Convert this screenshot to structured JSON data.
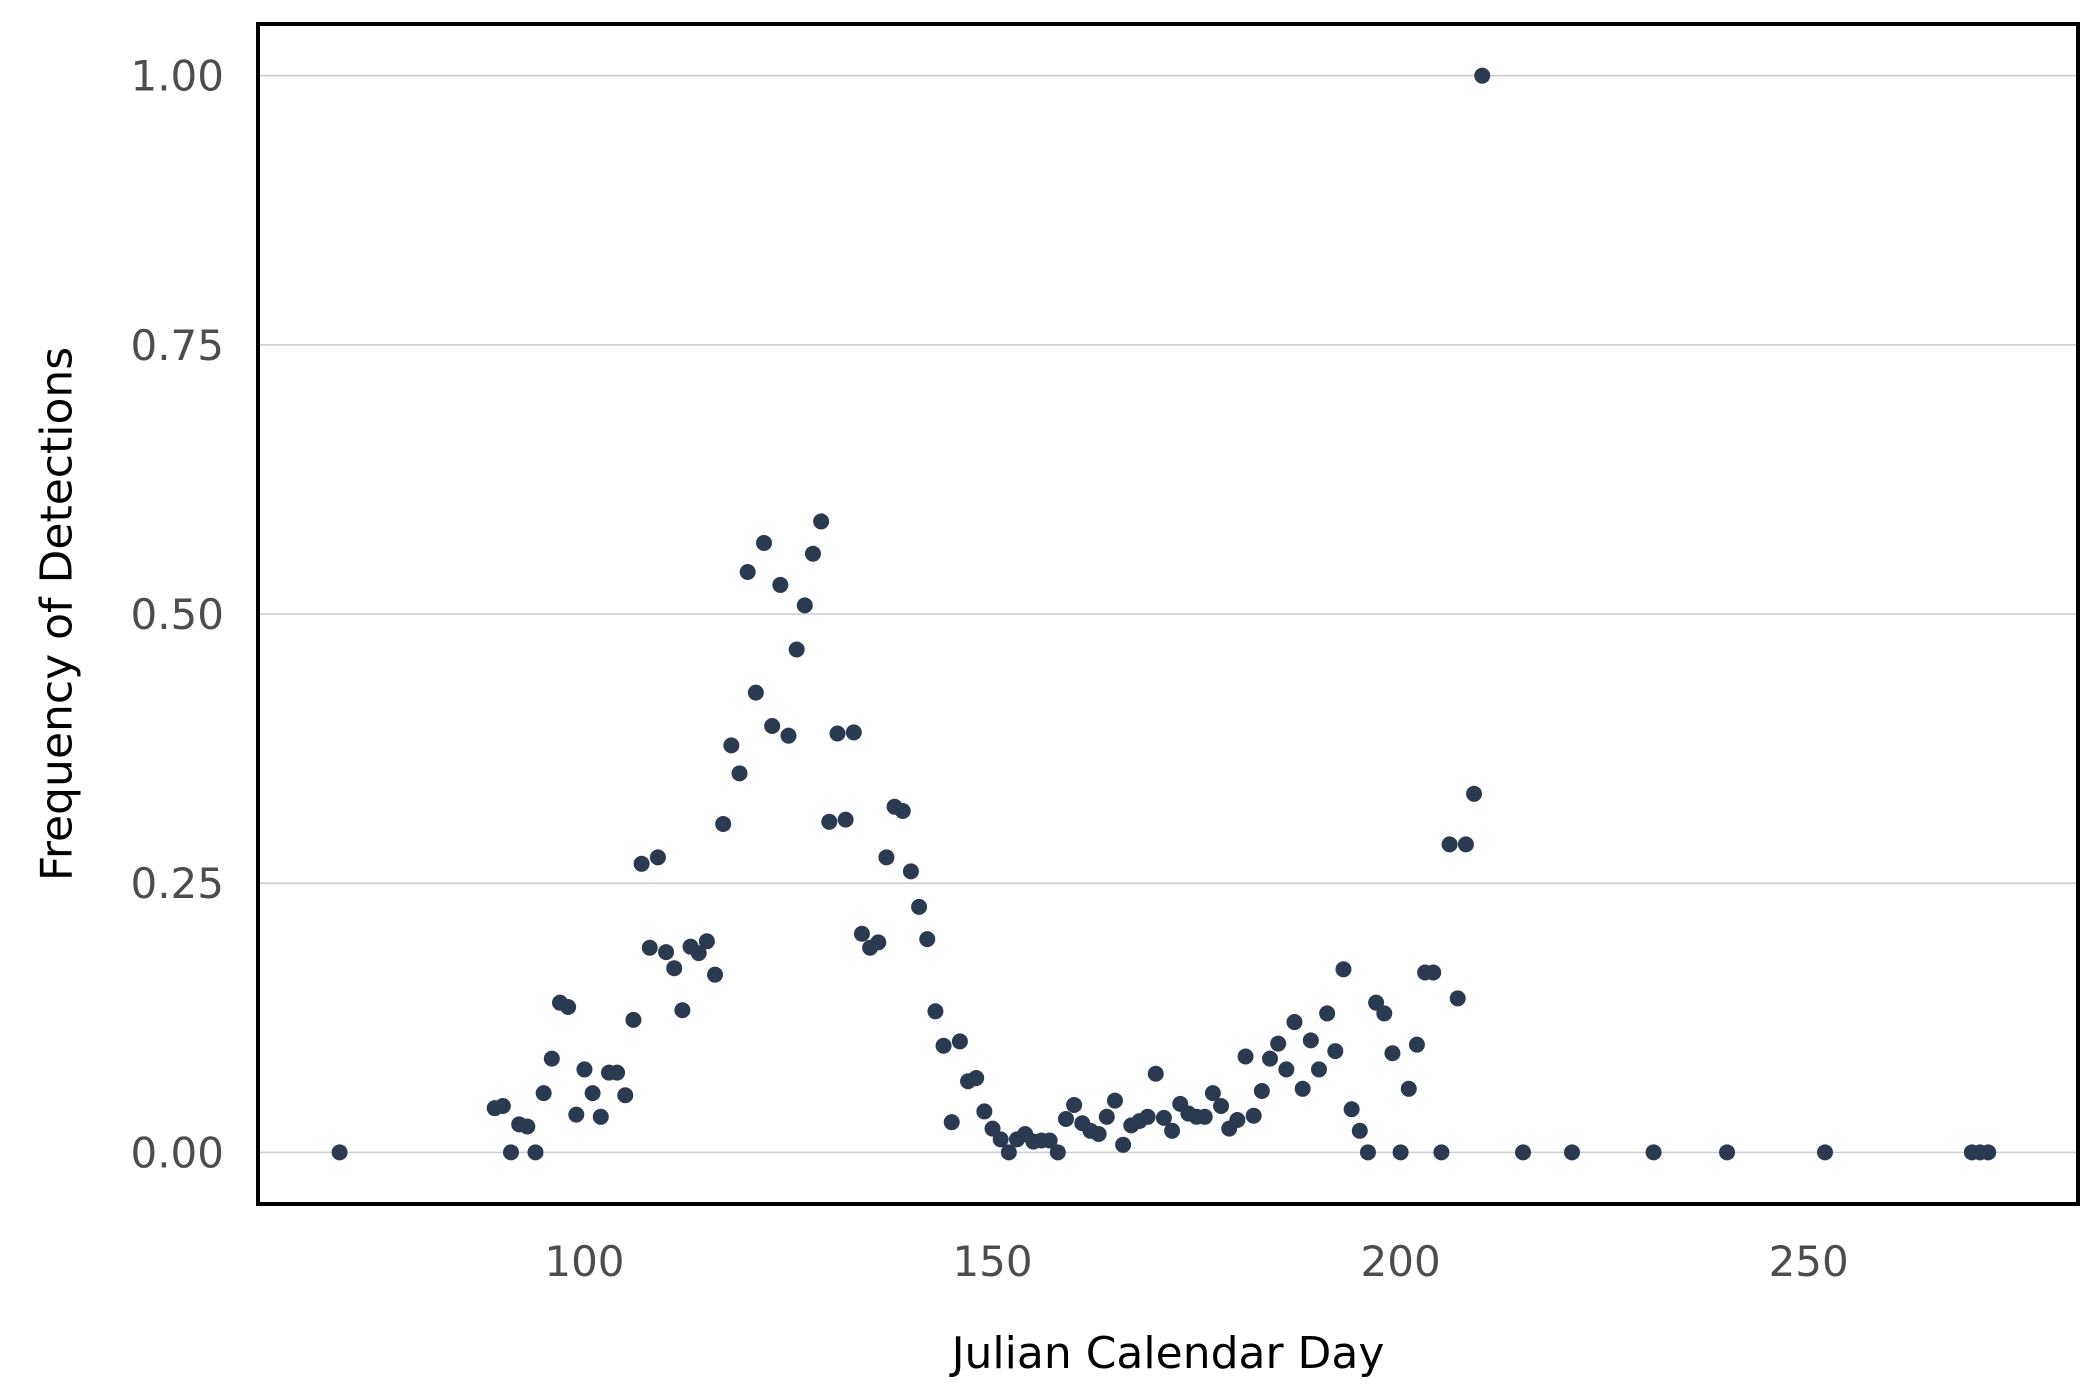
{
  "chart_data": {
    "type": "scatter",
    "title": "",
    "xlabel": "Julian Calendar Day",
    "ylabel": "Frequency of Detections",
    "xlim": [
      60,
      283
    ],
    "ylim": [
      -0.048,
      1.048
    ],
    "x_ticks": [
      100,
      150,
      200,
      250
    ],
    "y_ticks": [
      0.0,
      0.25,
      0.5,
      0.75,
      1.0
    ],
    "x_tick_labels": [
      "100",
      "150",
      "200",
      "250"
    ],
    "y_tick_labels": [
      "0.00",
      "0.25",
      "0.50",
      "0.75",
      "1.00"
    ],
    "grid": "horizontal",
    "legend": "none",
    "point_color": "#2b3a4f",
    "points": [
      [
        70,
        0.0
      ],
      [
        89,
        0.041
      ],
      [
        90,
        0.043
      ],
      [
        91,
        0.0
      ],
      [
        92,
        0.026
      ],
      [
        93,
        0.024
      ],
      [
        94,
        0.0
      ],
      [
        95,
        0.055
      ],
      [
        96,
        0.087
      ],
      [
        97,
        0.139
      ],
      [
        98,
        0.135
      ],
      [
        99,
        0.035
      ],
      [
        100,
        0.077
      ],
      [
        101,
        0.055
      ],
      [
        102,
        0.033
      ],
      [
        103,
        0.074
      ],
      [
        104,
        0.074
      ],
      [
        105,
        0.053
      ],
      [
        106,
        0.123
      ],
      [
        107,
        0.268
      ],
      [
        108,
        0.19
      ],
      [
        109,
        0.274
      ],
      [
        110,
        0.186
      ],
      [
        111,
        0.171
      ],
      [
        112,
        0.132
      ],
      [
        113,
        0.191
      ],
      [
        114,
        0.185
      ],
      [
        115,
        0.196
      ],
      [
        116,
        0.165
      ],
      [
        117,
        0.305
      ],
      [
        118,
        0.378
      ],
      [
        119,
        0.352
      ],
      [
        120,
        0.539
      ],
      [
        121,
        0.427
      ],
      [
        122,
        0.566
      ],
      [
        123,
        0.396
      ],
      [
        124,
        0.527
      ],
      [
        125,
        0.387
      ],
      [
        126,
        0.467
      ],
      [
        127,
        0.508
      ],
      [
        128,
        0.556
      ],
      [
        129,
        0.586
      ],
      [
        130,
        0.307
      ],
      [
        131,
        0.389
      ],
      [
        132,
        0.309
      ],
      [
        133,
        0.39
      ],
      [
        134,
        0.203
      ],
      [
        135,
        0.19
      ],
      [
        136,
        0.195
      ],
      [
        137,
        0.274
      ],
      [
        138,
        0.321
      ],
      [
        139,
        0.317
      ],
      [
        140,
        0.261
      ],
      [
        141,
        0.228
      ],
      [
        142,
        0.198
      ],
      [
        143,
        0.131
      ],
      [
        144,
        0.099
      ],
      [
        145,
        0.028
      ],
      [
        146,
        0.103
      ],
      [
        147,
        0.066
      ],
      [
        148,
        0.069
      ],
      [
        149,
        0.038
      ],
      [
        150,
        0.022
      ],
      [
        151,
        0.012
      ],
      [
        152,
        0.0
      ],
      [
        153,
        0.012
      ],
      [
        154,
        0.017
      ],
      [
        155,
        0.01
      ],
      [
        156,
        0.011
      ],
      [
        157,
        0.011
      ],
      [
        158,
        0.0
      ],
      [
        159,
        0.031
      ],
      [
        160,
        0.044
      ],
      [
        161,
        0.027
      ],
      [
        162,
        0.02
      ],
      [
        163,
        0.017
      ],
      [
        164,
        0.033
      ],
      [
        165,
        0.048
      ],
      [
        166,
        0.007
      ],
      [
        167,
        0.025
      ],
      [
        168,
        0.029
      ],
      [
        169,
        0.033
      ],
      [
        170,
        0.073
      ],
      [
        171,
        0.032
      ],
      [
        172,
        0.02
      ],
      [
        173,
        0.045
      ],
      [
        174,
        0.036
      ],
      [
        175,
        0.033
      ],
      [
        176,
        0.033
      ],
      [
        177,
        0.055
      ],
      [
        178,
        0.043
      ],
      [
        179,
        0.022
      ],
      [
        180,
        0.03
      ],
      [
        181,
        0.089
      ],
      [
        182,
        0.034
      ],
      [
        183,
        0.057
      ],
      [
        184,
        0.087
      ],
      [
        185,
        0.101
      ],
      [
        186,
        0.077
      ],
      [
        187,
        0.121
      ],
      [
        188,
        0.059
      ],
      [
        189,
        0.104
      ],
      [
        190,
        0.077
      ],
      [
        191,
        0.129
      ],
      [
        192,
        0.094
      ],
      [
        193,
        0.17
      ],
      [
        194,
        0.04
      ],
      [
        195,
        0.02
      ],
      [
        196,
        0.0
      ],
      [
        197,
        0.139
      ],
      [
        198,
        0.129
      ],
      [
        199,
        0.092
      ],
      [
        200,
        0.0
      ],
      [
        201,
        0.059
      ],
      [
        202,
        0.1
      ],
      [
        203,
        0.167
      ],
      [
        204,
        0.167
      ],
      [
        205,
        0.0
      ],
      [
        206,
        0.286
      ],
      [
        207,
        0.143
      ],
      [
        208,
        0.286
      ],
      [
        209,
        0.333
      ],
      [
        210,
        1.0
      ],
      [
        215,
        0.0
      ],
      [
        221,
        0.0
      ],
      [
        231,
        0.0
      ],
      [
        240,
        0.0
      ],
      [
        252,
        0.0
      ],
      [
        270,
        0.0
      ],
      [
        271,
        0.0
      ],
      [
        272,
        0.0
      ]
    ]
  }
}
